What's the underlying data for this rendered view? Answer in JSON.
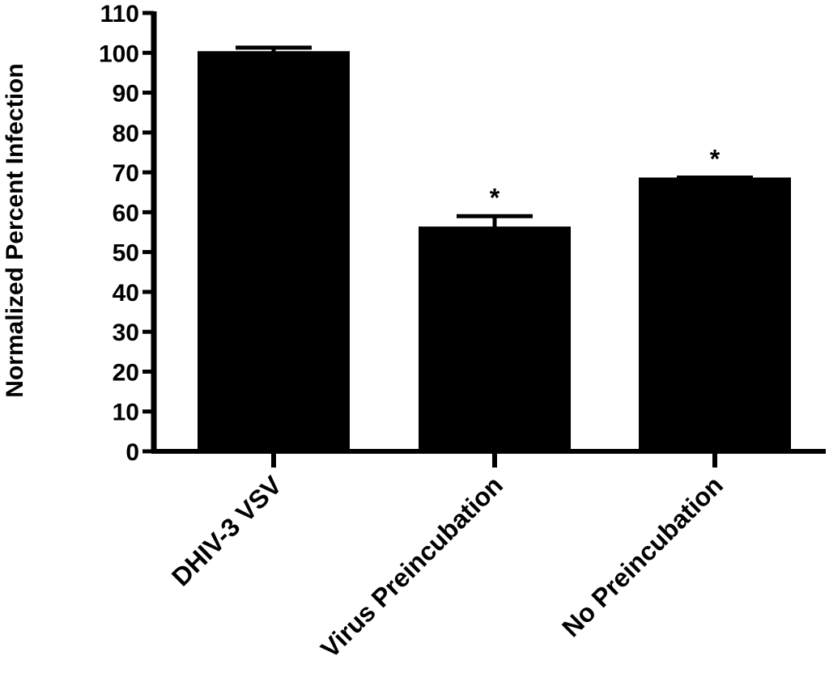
{
  "chart_data": {
    "type": "bar",
    "ylabel": "Normalized Percent Infection",
    "xlabel": "",
    "ylim": [
      0,
      110
    ],
    "yticks": [
      0,
      10,
      20,
      30,
      40,
      50,
      60,
      70,
      80,
      90,
      100,
      110
    ],
    "categories": [
      "DHIV-3 VSV",
      "Virus Preincubation",
      "No Preincubation"
    ],
    "values": [
      100,
      56,
      68.3
    ],
    "error_upper": [
      1.3,
      3.0,
      0.4
    ],
    "significance": [
      "",
      "*",
      "*"
    ],
    "bar_color": "#000000",
    "grid": false,
    "legend": "none"
  }
}
